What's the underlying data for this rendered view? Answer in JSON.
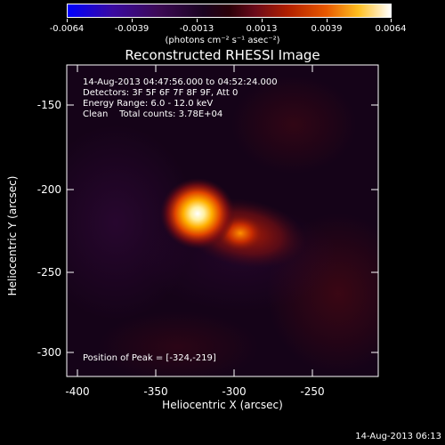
{
  "colorbar": {
    "tick_labels": [
      "-0.0064",
      "-0.0039",
      "-0.0013",
      "0.0013",
      "0.0039",
      "0.0064"
    ],
    "units_label": "(photons cm⁻² s⁻¹ asec⁻²)"
  },
  "plot": {
    "title": "Reconstructed RHESSI Image",
    "info_lines": {
      "time": "14-Aug-2013 04:47:56.000 to 04:52:24.000",
      "detectors": "Detectors: 3F 5F 6F 7F 8F 9F, Att 0",
      "energy": "Energy Range: 6.0 - 12.0 keV",
      "clean": "Clean    Total counts: 3.78E+04"
    },
    "peak_label": "Position of Peak = [-324,-219]",
    "x_axis": {
      "title": "Heliocentric X (arcsec)",
      "tick_labels": [
        "-400",
        "-350",
        "-300",
        "-250"
      ]
    },
    "y_axis": {
      "title": "Heliocentric Y (arcsec)",
      "tick_labels": [
        "-150",
        "-200",
        "-250",
        "-300"
      ]
    }
  },
  "footer": {
    "timestamp": "14-Aug-2013 06:13"
  }
}
